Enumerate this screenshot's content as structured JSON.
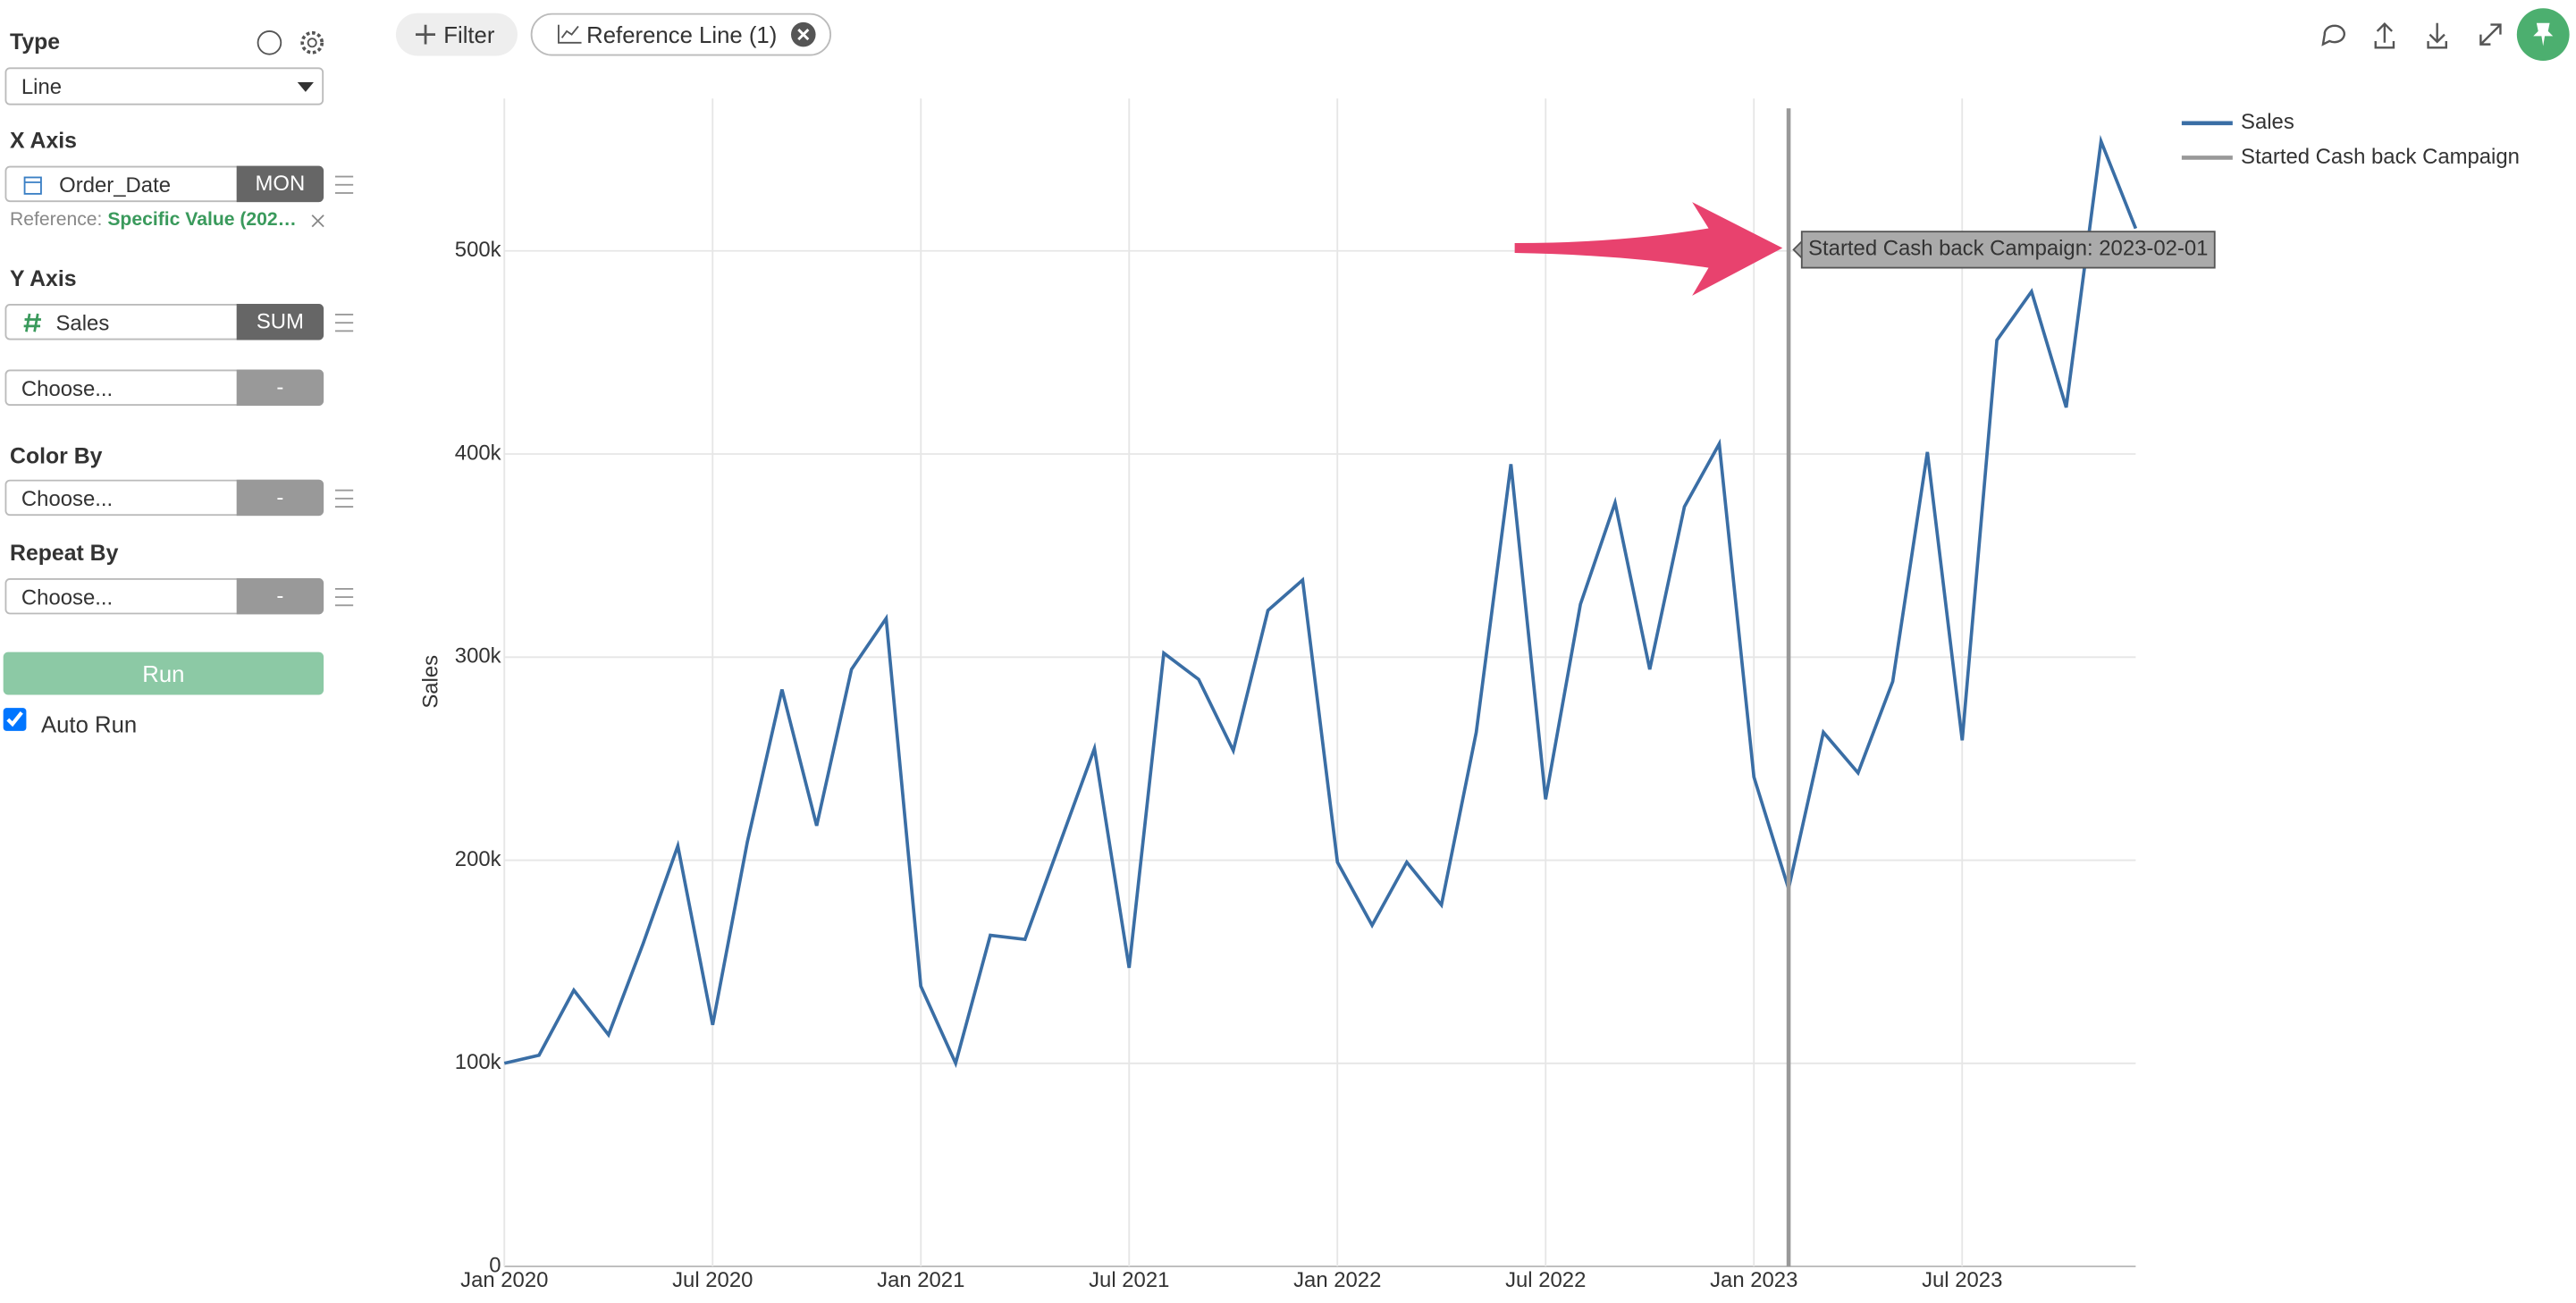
{
  "sidebar": {
    "type_label": "Type",
    "type_value": "Line",
    "x_axis_label": "X Axis",
    "x_field": "Order_Date",
    "x_agg": "MON",
    "reference_prefix": "Reference:",
    "reference_value": "Specific Value (202…",
    "y_axis_label": "Y Axis",
    "y_field": "Sales",
    "y_agg": "SUM",
    "y2_field": "Choose...",
    "y2_agg": "-",
    "color_by_label": "Color By",
    "color_by_field": "Choose...",
    "color_by_agg": "-",
    "repeat_by_label": "Repeat By",
    "repeat_by_field": "Choose...",
    "repeat_by_agg": "-",
    "run_button": "Run",
    "auto_run": "Auto Run"
  },
  "toolbar": {
    "filter": "Filter",
    "reference_line": "Reference Line (1)"
  },
  "chart_data": {
    "type": "line",
    "y_label": "Sales",
    "x": [
      "2020-01",
      "2020-02",
      "2020-03",
      "2020-04",
      "2020-05",
      "2020-06",
      "2020-07",
      "2020-08",
      "2020-09",
      "2020-10",
      "2020-11",
      "2020-12",
      "2021-01",
      "2021-02",
      "2021-03",
      "2021-04",
      "2021-05",
      "2021-06",
      "2021-07",
      "2021-08",
      "2021-09",
      "2021-10",
      "2021-11",
      "2021-12",
      "2022-01",
      "2022-02",
      "2022-03",
      "2022-04",
      "2022-05",
      "2022-06",
      "2022-07",
      "2022-08",
      "2022-09",
      "2022-10",
      "2022-11",
      "2022-12",
      "2023-01",
      "2023-02",
      "2023-03",
      "2023-04",
      "2023-05",
      "2023-06",
      "2023-07",
      "2023-08",
      "2023-09",
      "2023-10",
      "2023-11",
      "2023-12"
    ],
    "series": [
      {
        "name": "Sales",
        "color": "#3a6ea5",
        "values": [
          100000,
          104000,
          136000,
          114000,
          159000,
          207000,
          119000,
          209000,
          284000,
          217000,
          294000,
          319000,
          138000,
          100000,
          163000,
          161000,
          208000,
          255000,
          147000,
          302000,
          289000,
          254000,
          323000,
          338000,
          199000,
          168000,
          199000,
          178000,
          263000,
          395000,
          230000,
          326000,
          376000,
          294000,
          374000,
          405000,
          241000,
          186000,
          263000,
          243000,
          288000,
          401000,
          259000,
          456000,
          480000,
          423000,
          554000,
          511000
        ]
      }
    ],
    "reference_line": {
      "name": "Started Cash back Campaign",
      "x": "2023-02-01",
      "color": "#999999",
      "label": "Started Cash back Campaign: 2023-02-01"
    },
    "xlim": [
      "2020-01",
      "2023-12"
    ],
    "xticks": [
      {
        "value": "2020-01",
        "label": "Jan 2020"
      },
      {
        "value": "2020-07",
        "label": "Jul 2020"
      },
      {
        "value": "2021-01",
        "label": "Jan 2021"
      },
      {
        "value": "2021-07",
        "label": "Jul 2021"
      },
      {
        "value": "2022-01",
        "label": "Jan 2022"
      },
      {
        "value": "2022-07",
        "label": "Jul 2022"
      },
      {
        "value": "2023-01",
        "label": "Jan 2023"
      },
      {
        "value": "2023-07",
        "label": "Jul 2023"
      }
    ],
    "ylim": [
      0,
      575000
    ],
    "yticks": [
      0,
      {
        "value": 100000,
        "label": "100k"
      },
      {
        "value": 200000,
        "label": "200k"
      },
      {
        "value": 300000,
        "label": "300k"
      },
      {
        "value": 400000,
        "label": "400k"
      },
      {
        "value": 500000,
        "label": "500k"
      }
    ],
    "grid": true,
    "legend": "top-right"
  }
}
